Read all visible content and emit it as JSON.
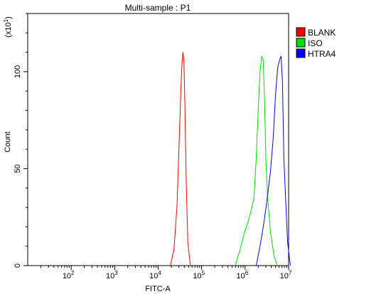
{
  "chart_data": {
    "type": "line",
    "title": "Multi-sample : P1",
    "xlabel": "FITC-A",
    "ylabel": "Count",
    "y_multiplier": "(x10",
    "y_multiplier_exp": "1",
    "y_multiplier_close": ")",
    "x_scale": "log",
    "xlim": [
      10,
      10000000
    ],
    "ylim": [
      0,
      130
    ],
    "x_ticks": [
      {
        "value": 100,
        "base": "10",
        "exp": "2"
      },
      {
        "value": 1000,
        "base": "10",
        "exp": "3"
      },
      {
        "value": 10000,
        "base": "10",
        "exp": "4"
      },
      {
        "value": 100000,
        "base": "10",
        "exp": "5"
      },
      {
        "value": 1000000,
        "base": "10",
        "exp": "6"
      },
      {
        "value": 10000000,
        "base": "10",
        "exp": "7"
      }
    ],
    "y_ticks": [
      {
        "value": 0,
        "label": "0"
      },
      {
        "value": 50,
        "label": "50"
      },
      {
        "value": 100,
        "label": "100"
      }
    ],
    "grid": false,
    "legend": "top-right",
    "series": [
      {
        "name": "BLANK",
        "color": "#ff0000",
        "x": [
          19000,
          23000,
          27000,
          30000,
          33000,
          35000,
          37000,
          39000,
          41000,
          44000,
          48000,
          55000
        ],
        "y": [
          0,
          8,
          30,
          60,
          88,
          103,
          110,
          106,
          85,
          45,
          12,
          0
        ]
      },
      {
        "name": "ISO",
        "color": "#00e000",
        "x": [
          600000,
          800000,
          1000000,
          1300000,
          1600000,
          1800000,
          2000000,
          2200000,
          2400000,
          2600000,
          2800000,
          3000000,
          3300000,
          3800000,
          4600000,
          5500000
        ],
        "y": [
          0,
          10,
          18,
          26,
          35,
          55,
          80,
          100,
          108,
          106,
          85,
          55,
          35,
          18,
          5,
          0
        ]
      },
      {
        "name": "HTRA4",
        "color": "#0000ff",
        "x": [
          1800000,
          2200000,
          2700000,
          3200000,
          3800000,
          4400000,
          5000000,
          5600000,
          6200000,
          6700000,
          7200000,
          7800000,
          8500000,
          9500000,
          11000000
        ],
        "y": [
          0,
          10,
          22,
          34,
          48,
          65,
          88,
          102,
          106,
          108,
          95,
          55,
          35,
          12,
          0
        ]
      }
    ]
  }
}
